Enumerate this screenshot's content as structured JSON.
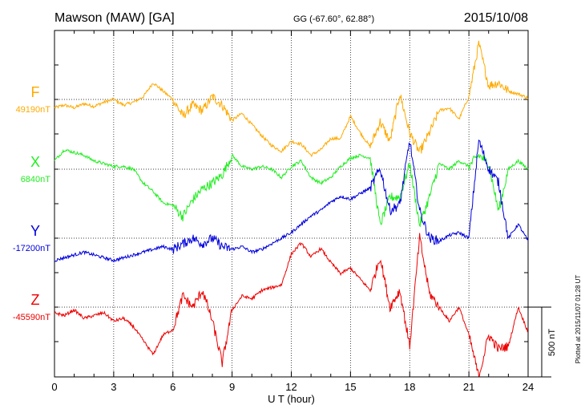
{
  "header": {
    "station": "Mawson (MAW)  [GA]",
    "coords": "GG (-67.60°,  62.88°)",
    "date": "2015/10/08"
  },
  "side_note": "Plotted at 2015/11/07 01:28 UT",
  "scale_label": "500 nT",
  "chart_data": {
    "type": "line",
    "title": "Mawson (MAW)  [GA]",
    "xlabel": "U T (hour)",
    "ylabel": "",
    "xlim": [
      0,
      24
    ],
    "xticks": [
      "0",
      "3",
      "6",
      "9",
      "12",
      "15",
      "18",
      "21",
      "24"
    ],
    "grid": true,
    "scale_bar_nT": 500,
    "series": [
      {
        "name": "F",
        "baseline_label": "49190nT",
        "color": "#ffaa00",
        "x": [
          0,
          0.5,
          1,
          1.5,
          2,
          2.5,
          3,
          3.5,
          4,
          4.5,
          5,
          5.5,
          6,
          6.5,
          7,
          7.5,
          8,
          8.5,
          9,
          9.5,
          10,
          10.5,
          11,
          11.5,
          12,
          12.5,
          13,
          13.5,
          14,
          14.5,
          15,
          15.5,
          16,
          16.5,
          17,
          17.5,
          18,
          18.5,
          19,
          19.5,
          20,
          20.5,
          21,
          21.5,
          22,
          22.5,
          23,
          23.5,
          24
        ],
        "values": [
          -60,
          -40,
          -60,
          -30,
          -50,
          -20,
          0,
          -40,
          -20,
          20,
          120,
          60,
          0,
          -120,
          -40,
          -80,
          20,
          -40,
          -150,
          -100,
          -180,
          -260,
          -330,
          -370,
          -300,
          -320,
          -400,
          -360,
          -280,
          -280,
          -120,
          -240,
          -340,
          -160,
          -300,
          40,
          -240,
          -380,
          -240,
          -80,
          -60,
          -140,
          20,
          400,
          100,
          120,
          60,
          40,
          10
        ]
      },
      {
        "name": "X",
        "baseline_label": "6840nT",
        "color": "#22ee22",
        "x": [
          0,
          0.5,
          1,
          1.5,
          2,
          2.5,
          3,
          3.5,
          4,
          4.5,
          5,
          5.5,
          6,
          6.5,
          7,
          7.5,
          8,
          8.5,
          9,
          9.5,
          10,
          10.5,
          11,
          11.5,
          12,
          12.5,
          13,
          13.5,
          14,
          14.5,
          15,
          15.5,
          16,
          16.5,
          17,
          17.5,
          18,
          18.5,
          19,
          19.5,
          20,
          20.5,
          21,
          21.5,
          22,
          22.5,
          23,
          23.5,
          24
        ],
        "values": [
          60,
          140,
          120,
          100,
          60,
          40,
          20,
          20,
          0,
          -100,
          -160,
          -240,
          -260,
          -340,
          -220,
          -140,
          -100,
          -40,
          100,
          20,
          0,
          20,
          0,
          -60,
          20,
          60,
          -60,
          -100,
          -60,
          20,
          80,
          100,
          80,
          -400,
          -200,
          -200,
          40,
          -400,
          -200,
          40,
          0,
          60,
          20,
          100,
          40,
          -300,
          0,
          60,
          0
        ]
      },
      {
        "name": "Y",
        "baseline_label": "-17200nT",
        "color": "#0000dd",
        "x": [
          0,
          0.5,
          1,
          1.5,
          2,
          2.5,
          3,
          3.5,
          4,
          4.5,
          5,
          5.5,
          6,
          6.5,
          7,
          7.5,
          8,
          8.5,
          9,
          9.5,
          10,
          10.5,
          11,
          11.5,
          12,
          12.5,
          13,
          13.5,
          14,
          14.5,
          15,
          15.5,
          16,
          16.5,
          17,
          17.5,
          18,
          18.5,
          19,
          19.5,
          20,
          20.5,
          21,
          21.5,
          22,
          22.5,
          23,
          23.5,
          24
        ],
        "values": [
          -160,
          -140,
          -120,
          -100,
          -120,
          -140,
          -160,
          -140,
          -120,
          -100,
          -80,
          -60,
          -80,
          -40,
          0,
          -40,
          0,
          -60,
          -80,
          -60,
          -100,
          -80,
          -40,
          0,
          40,
          100,
          160,
          200,
          260,
          300,
          280,
          320,
          360,
          500,
          200,
          240,
          700,
          200,
          0,
          -20,
          20,
          40,
          0,
          700,
          500,
          400,
          0,
          100,
          -20
        ]
      },
      {
        "name": "Z",
        "baseline_label": "-45590nT",
        "color": "#ee0000",
        "x": [
          0,
          0.5,
          1,
          1.5,
          2,
          2.5,
          3,
          3.5,
          4,
          4.5,
          5,
          5.5,
          6,
          6.5,
          7,
          7.5,
          8,
          8.5,
          9,
          9.5,
          10,
          10.5,
          11,
          11.5,
          12,
          12.5,
          13,
          13.5,
          14,
          14.5,
          15,
          15.5,
          16,
          16.5,
          17,
          17.5,
          18,
          18.5,
          19,
          19.5,
          20,
          20.5,
          21,
          21.5,
          22,
          22.5,
          23,
          23.5,
          24
        ],
        "values": [
          -40,
          -60,
          -20,
          -80,
          -60,
          -40,
          -100,
          -80,
          -140,
          -240,
          -340,
          -200,
          -160,
          80,
          0,
          120,
          -100,
          -400,
          -20,
          80,
          60,
          120,
          140,
          160,
          380,
          460,
          360,
          420,
          320,
          240,
          280,
          200,
          120,
          360,
          0,
          120,
          -280,
          500,
          100,
          0,
          -100,
          0,
          -200,
          -500,
          -200,
          -300,
          -280,
          0,
          -180
        ]
      }
    ]
  }
}
